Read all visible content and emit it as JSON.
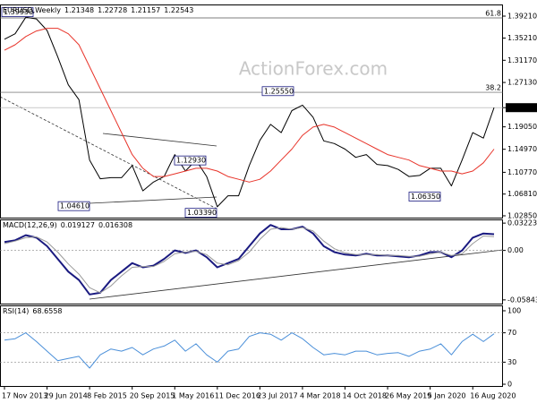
{
  "chart_data": [
    {
      "type": "line",
      "title": "EURUSD,Weekly",
      "ohlc": {
        "open": 1.21348,
        "high": 1.22728,
        "low": 1.21157
      },
      "watermark": "ActionForex.com",
      "ylim": [
        1.0252,
        1.4133
      ],
      "yticks": [
        {
          "value": 1.3921,
          "label": "1.39210"
        },
        {
          "value": 1.3521,
          "label": "1.35210"
        },
        {
          "value": 1.3117,
          "label": "1.31170"
        },
        {
          "value": 1.2713,
          "label": "1.27130"
        },
        1.22543,
        {
          "value": 1.1905,
          "label": "1.19050"
        },
        {
          "value": 1.1497,
          "label": "1.14970"
        },
        {
          "value": 1.1077,
          "label": "1.10770"
        },
        {
          "value": 1.0681,
          "label": "1.06810"
        },
        {
          "value": 1.0285,
          "label": "1.02850"
        }
      ],
      "series": [
        {
          "color": "#000000",
          "values": [
            1.35,
            1.36,
            1.39,
            1.387,
            1.366,
            1.318,
            1.267,
            1.24,
            1.13,
            1.096,
            1.098,
            1.098,
            1.12,
            1.074,
            1.09,
            1.1,
            1.14,
            1.11,
            1.13,
            1.1,
            1.045,
            1.065,
            1.065,
            1.12,
            1.166,
            1.195,
            1.18,
            1.22,
            1.23,
            1.208,
            1.165,
            1.16,
            1.15,
            1.135,
            1.14,
            1.122,
            1.12,
            1.113,
            1.1,
            1.102,
            1.115,
            1.115,
            1.083,
            1.13,
            1.18,
            1.17,
            1.22543
          ]
        },
        {
          "color": "#e8342a",
          "values": [
            1.33,
            1.34,
            1.355,
            1.365,
            1.37,
            1.37,
            1.36,
            1.34,
            1.3,
            1.26,
            1.22,
            1.18,
            1.14,
            1.115,
            1.1,
            1.1,
            1.105,
            1.11,
            1.115,
            1.115,
            1.11,
            1.1,
            1.095,
            1.09,
            1.095,
            1.11,
            1.13,
            1.15,
            1.175,
            1.19,
            1.195,
            1.19,
            1.18,
            1.17,
            1.16,
            1.15,
            1.14,
            1.135,
            1.13,
            1.12,
            1.115,
            1.11,
            1.11,
            1.105,
            1.11,
            1.125,
            1.15
          ]
        }
      ],
      "annotations": [
        {
          "label": "1.39930",
          "value": 1.3993
        },
        {
          "label": "1.04610",
          "value": 1.0461
        },
        {
          "label": "1.12930",
          "value": 1.1293
        },
        {
          "label": "1.03390",
          "value": 1.0339
        },
        {
          "label": "1.25550",
          "value": 1.2555
        },
        {
          "label": "1.06350",
          "value": 1.0635
        }
      ],
      "levels": [
        {
          "label": "61.8",
          "value": 1.3888
        },
        {
          "label": "38.2",
          "value": 1.2534
        }
      ]
    },
    {
      "type": "line",
      "title": "MACD(12,26,9)",
      "ylim": [
        -0.0628,
        0.0366
      ],
      "yticks": [
        0.032235,
        {
          "value": 0,
          "label": "0.00"
        },
        -0.058434
      ],
      "series": [
        {
          "color": "#1a1a80",
          "values": [
            0.01,
            0.012,
            0.018,
            0.015,
            0.005,
            -0.01,
            -0.025,
            -0.035,
            -0.052,
            -0.05,
            -0.035,
            -0.025,
            -0.015,
            -0.02,
            -0.018,
            -0.01,
            0.0,
            -0.003,
            0.0,
            -0.008,
            -0.02,
            -0.015,
            -0.01,
            0.005,
            0.02,
            0.03,
            0.025,
            0.025,
            0.028,
            0.02,
            0.005,
            -0.002,
            -0.005,
            -0.006,
            -0.004,
            -0.006,
            -0.006,
            -0.007,
            -0.008,
            -0.006,
            -0.002,
            -0.002,
            -0.008,
            0.0,
            0.015,
            0.02,
            0.019127
          ]
        },
        {
          "color": "#9a9a9a",
          "values": [
            0.008,
            0.011,
            0.015,
            0.016,
            0.01,
            -0.002,
            -0.016,
            -0.028,
            -0.044,
            -0.05,
            -0.042,
            -0.03,
            -0.02,
            -0.019,
            -0.019,
            -0.013,
            -0.004,
            -0.002,
            -0.001,
            -0.005,
            -0.015,
            -0.017,
            -0.012,
            -0.002,
            0.013,
            0.025,
            0.027,
            0.025,
            0.027,
            0.023,
            0.011,
            0.002,
            -0.003,
            -0.005,
            -0.005,
            -0.005,
            -0.006,
            -0.006,
            -0.007,
            -0.007,
            -0.004,
            -0.002,
            -0.006,
            -0.004,
            0.008,
            0.017,
            0.016308
          ]
        }
      ]
    },
    {
      "type": "line",
      "title": "RSI(14)",
      "ylim": [
        -2.4,
        107.3
      ],
      "yticks": [
        100,
        70,
        30,
        0
      ],
      "categories": [
        "17 Nov 2013",
        null,
        null,
        null,
        "29 Jun 2014",
        null,
        null,
        null,
        "8 Feb 2015",
        null,
        null,
        null,
        "20 Sep 2015",
        null,
        null,
        null,
        "1 May 2016",
        null,
        null,
        null,
        "11 Dec 2016",
        null,
        null,
        null,
        "23 Jul 2017",
        null,
        null,
        null,
        "4 Mar 2018",
        null,
        null,
        null,
        "14 Oct 2018",
        null,
        null,
        null,
        "26 May 2019",
        null,
        null,
        null,
        "5 Jan 2020",
        null,
        null,
        null,
        "16 Aug 2020",
        null,
        null
      ],
      "series": [
        {
          "color": "#4a8fd9",
          "values": [
            60,
            62,
            70,
            58,
            45,
            32,
            35,
            38,
            22,
            40,
            48,
            45,
            50,
            40,
            48,
            52,
            60,
            45,
            55,
            40,
            30,
            45,
            48,
            65,
            70,
            68,
            60,
            70,
            62,
            50,
            40,
            42,
            40,
            45,
            45,
            40,
            42,
            43,
            38,
            45,
            48,
            55,
            40,
            58,
            68,
            58,
            68.6558
          ]
        }
      ]
    }
  ]
}
